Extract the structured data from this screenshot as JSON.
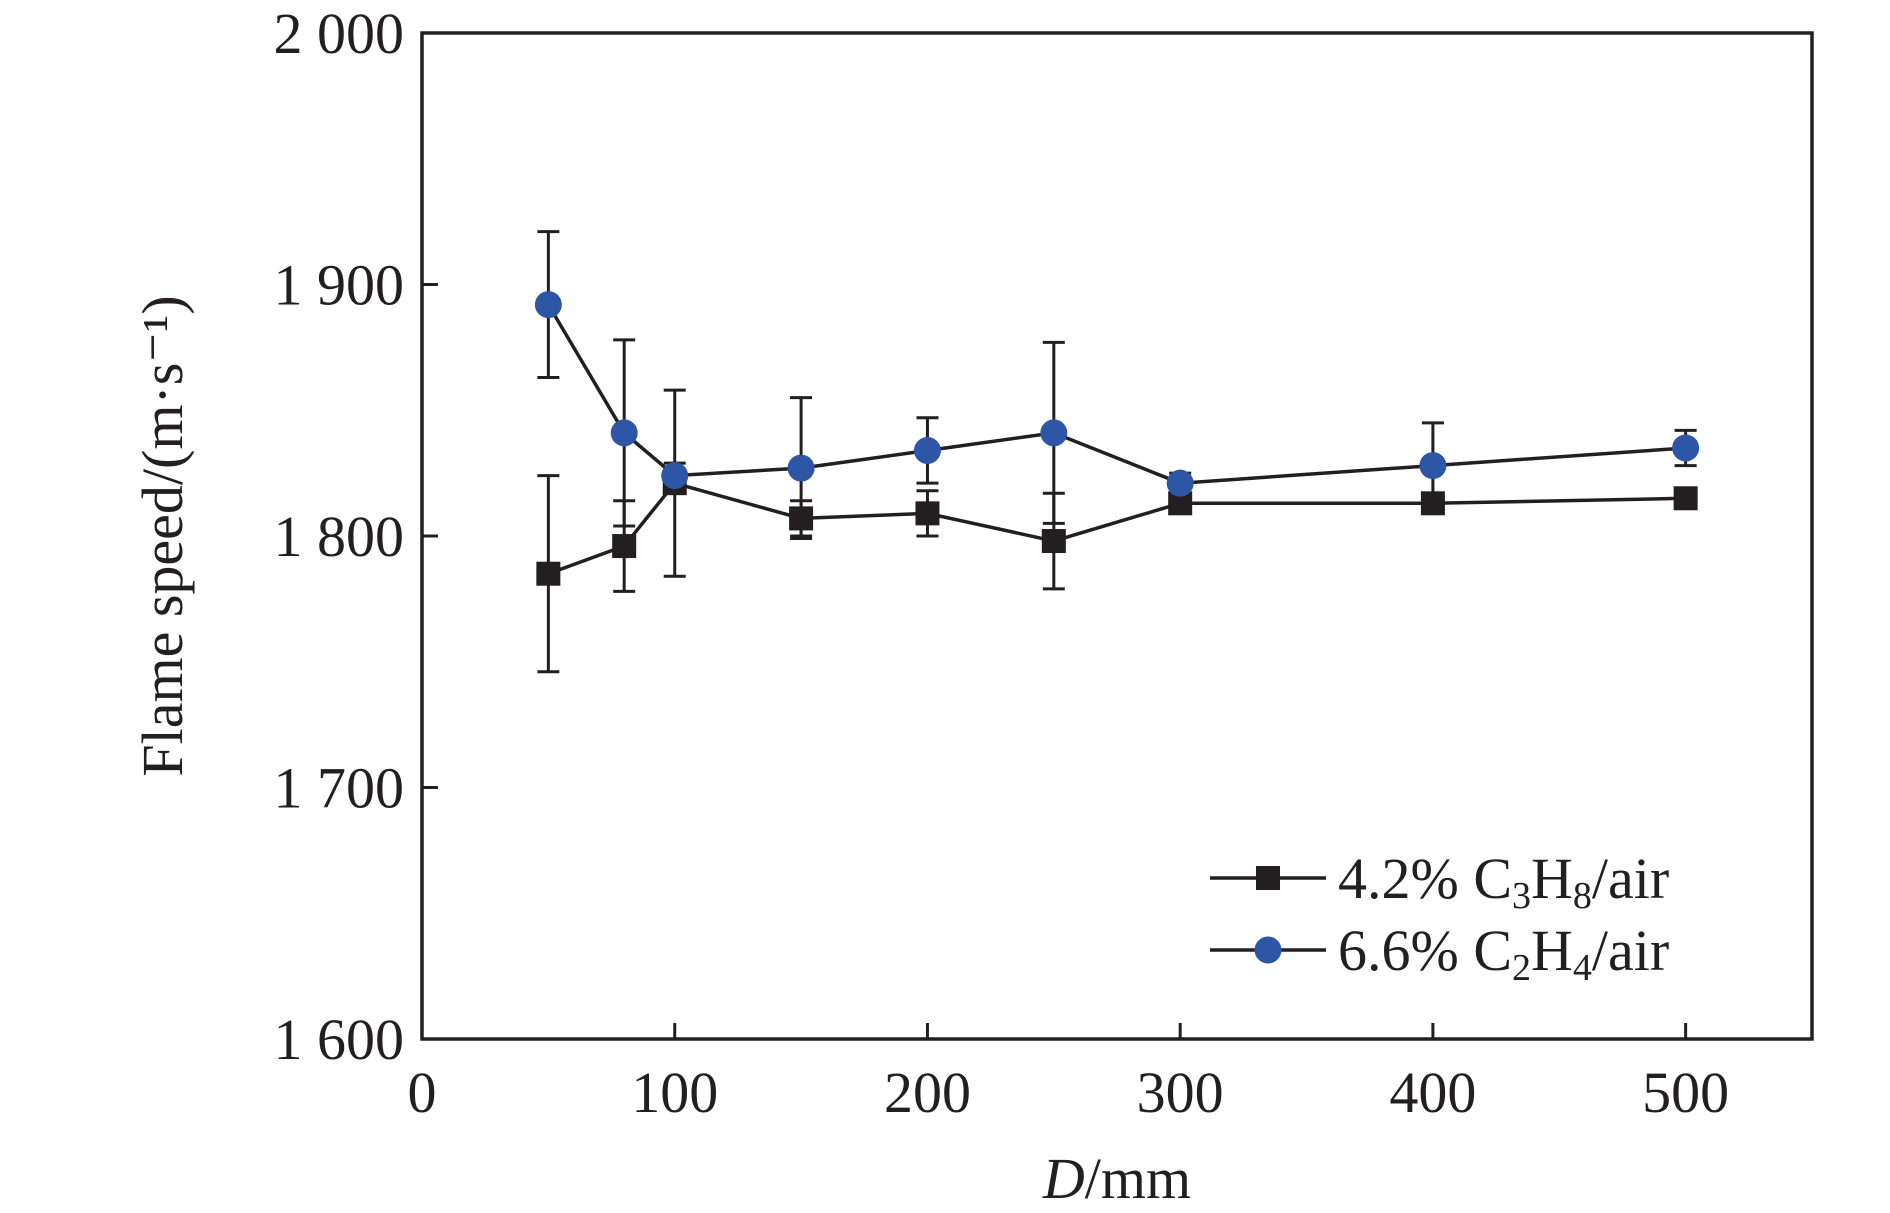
{
  "chart_data": {
    "type": "line",
    "xlabel": {
      "italic": "D",
      "rest": "/mm"
    },
    "ylabel": "Flame speed/(m·s⁻¹)",
    "xlim": [
      0,
      550
    ],
    "ylim": [
      1600,
      2000
    ],
    "x_ticks": [
      0,
      100,
      200,
      300,
      400,
      500
    ],
    "y_ticks": [
      1600,
      1700,
      1800,
      1900,
      2000
    ],
    "x_tick_labels": [
      "0",
      "100",
      "200",
      "300",
      "400",
      "500"
    ],
    "y_tick_labels": [
      "1 600",
      "1 700",
      "1 800",
      "1 900",
      "2 000"
    ],
    "legend_placement": "bottom-right",
    "grid": false,
    "series": [
      {
        "name": "4.2% C3H8/air",
        "legend": {
          "pre": "4.2% C",
          "sub1": "3",
          "mid": "H",
          "sub2": "8",
          "post": "/air"
        },
        "marker": "square",
        "color": "#231f20",
        "x": [
          50,
          80,
          100,
          150,
          200,
          250,
          300,
          400,
          500
        ],
        "y": [
          1785,
          1796,
          1821,
          1807,
          1809,
          1798,
          1813,
          1813,
          1815
        ],
        "err": [
          39,
          18,
          37,
          7,
          9,
          19,
          3,
          2,
          2
        ]
      },
      {
        "name": "6.6% C2H4/air",
        "legend": {
          "pre": "6.6% C",
          "sub1": "2",
          "mid": "H",
          "sub2": "4",
          "post": "/air"
        },
        "marker": "circle",
        "color": "#2e56a6",
        "x": [
          50,
          80,
          100,
          150,
          200,
          250,
          300,
          400,
          500
        ],
        "y": [
          1892,
          1841,
          1824,
          1827,
          1834,
          1841,
          1821,
          1828,
          1835
        ],
        "err": [
          29,
          37,
          5,
          28,
          13,
          36,
          4,
          17,
          7
        ]
      }
    ]
  }
}
